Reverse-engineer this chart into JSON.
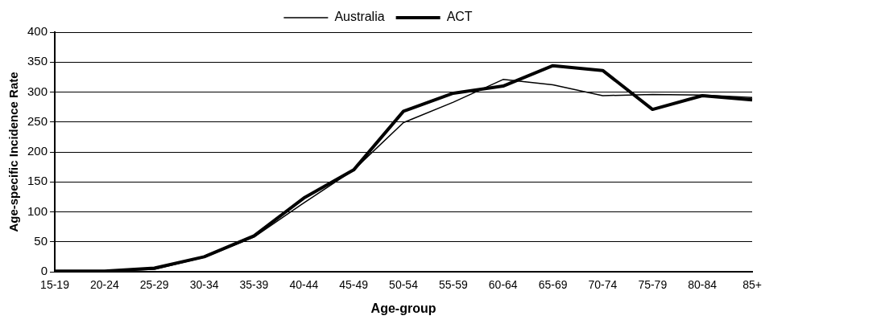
{
  "chart_data": {
    "type": "line",
    "xlabel": "Age-group",
    "ylabel": "Age-specific Incidence Rate",
    "categories": [
      "15-19",
      "20-24",
      "25-29",
      "30-34",
      "35-39",
      "40-44",
      "45-49",
      "50-54",
      "55-59",
      "60-64",
      "65-69",
      "70-74",
      "75-79",
      "80-84",
      "85+"
    ],
    "series": [
      {
        "name": "Australia",
        "color": "#000000",
        "values": [
          1,
          1,
          4,
          24,
          58,
          115,
          170,
          249,
          283,
          321,
          312,
          294,
          296,
          295,
          291
        ]
      },
      {
        "name": "ACT",
        "color": "#000000",
        "values": [
          1,
          1,
          6,
          25,
          60,
          123,
          170,
          268,
          298,
          310,
          344,
          336,
          271,
          294,
          287
        ]
      }
    ],
    "ylim": [
      0,
      400
    ],
    "yticks": [
      0,
      50,
      100,
      150,
      200,
      250,
      300,
      350,
      400
    ],
    "grid": "y",
    "legend": "top",
    "marker": "none"
  }
}
